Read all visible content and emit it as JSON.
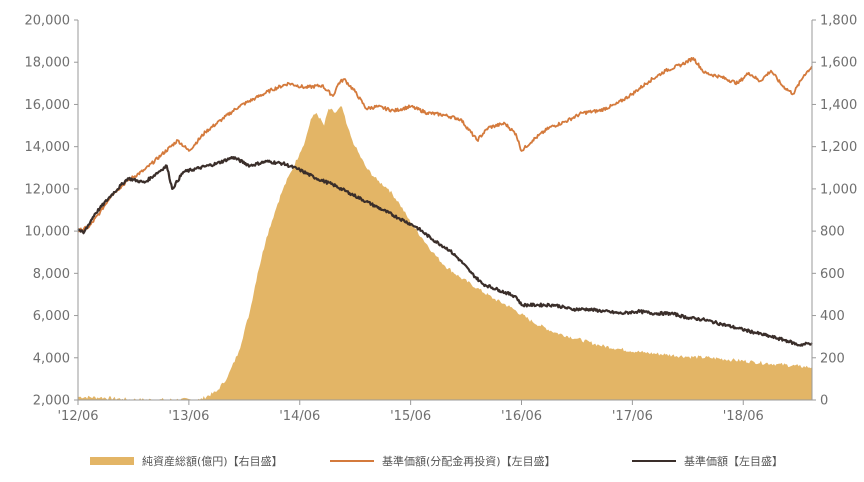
{
  "chart_data": {
    "type": "line",
    "left_axis": {
      "min": 2000,
      "max": 20000,
      "ticks": [
        "2,000",
        "4,000",
        "6,000",
        "8,000",
        "10,000",
        "12,000",
        "14,000",
        "16,000",
        "18,000",
        "20,000"
      ]
    },
    "right_axis": {
      "min": 0,
      "max": 1800,
      "ticks": [
        "0",
        "200",
        "400",
        "600",
        "800",
        "1,000",
        "1,200",
        "1,400",
        "1,600",
        "1,800"
      ]
    },
    "x_axis": {
      "ticks": [
        "'12/06",
        "'13/06",
        "'14/06",
        "'15/06",
        "'16/06",
        "'17/06",
        "'18/06"
      ],
      "tick_positions_years": [
        2012.5,
        2013.5,
        2014.5,
        2015.5,
        2016.5,
        2017.5,
        2018.5
      ],
      "range": [
        2012.5,
        2019.12
      ]
    },
    "series": [
      {
        "name": "純資産総額(億円)【右目盛】",
        "axis": "right",
        "kind": "area",
        "color": "#e3b566",
        "points": [
          [
            2012.5,
            15
          ],
          [
            2012.7,
            12
          ],
          [
            2012.9,
            5
          ],
          [
            2013.0,
            2
          ],
          [
            2013.3,
            1
          ],
          [
            2013.6,
            2
          ],
          [
            2013.75,
            40
          ],
          [
            2013.85,
            110
          ],
          [
            2013.95,
            230
          ],
          [
            2014.05,
            420
          ],
          [
            2014.12,
            600
          ],
          [
            2014.2,
            770
          ],
          [
            2014.3,
            930
          ],
          [
            2014.35,
            1000
          ],
          [
            2014.42,
            1080
          ],
          [
            2014.5,
            1170
          ],
          [
            2014.55,
            1230
          ],
          [
            2014.6,
            1330
          ],
          [
            2014.65,
            1360
          ],
          [
            2014.72,
            1300
          ],
          [
            2014.76,
            1380
          ],
          [
            2014.82,
            1360
          ],
          [
            2014.88,
            1390
          ],
          [
            2014.92,
            1310
          ],
          [
            2014.96,
            1250
          ],
          [
            2015.0,
            1200
          ],
          [
            2015.1,
            1100
          ],
          [
            2015.2,
            1040
          ],
          [
            2015.3,
            1000
          ],
          [
            2015.4,
            930
          ],
          [
            2015.5,
            840
          ],
          [
            2015.6,
            770
          ],
          [
            2015.7,
            700
          ],
          [
            2015.8,
            640
          ],
          [
            2015.95,
            580
          ],
          [
            2016.1,
            530
          ],
          [
            2016.25,
            480
          ],
          [
            2016.4,
            440
          ],
          [
            2016.6,
            370
          ],
          [
            2016.8,
            320
          ],
          [
            2017.0,
            290
          ],
          [
            2017.2,
            260
          ],
          [
            2017.4,
            240
          ],
          [
            2017.6,
            225
          ],
          [
            2017.8,
            215
          ],
          [
            2018.0,
            205
          ],
          [
            2018.2,
            200
          ],
          [
            2018.4,
            190
          ],
          [
            2018.6,
            180
          ],
          [
            2018.8,
            170
          ],
          [
            2019.0,
            160
          ],
          [
            2019.12,
            155
          ]
        ]
      },
      {
        "name": "基準価額(分配金再投資)【左目盛】",
        "axis": "left",
        "kind": "line",
        "color": "#d47a3c",
        "points": [
          [
            2012.5,
            10000
          ],
          [
            2012.6,
            10200
          ],
          [
            2012.7,
            10900
          ],
          [
            2012.8,
            11700
          ],
          [
            2012.95,
            12400
          ],
          [
            2013.1,
            12900
          ],
          [
            2013.25,
            13600
          ],
          [
            2013.4,
            14300
          ],
          [
            2013.5,
            13800
          ],
          [
            2013.65,
            14700
          ],
          [
            2013.8,
            15300
          ],
          [
            2013.95,
            15900
          ],
          [
            2014.1,
            16300
          ],
          [
            2014.25,
            16700
          ],
          [
            2014.4,
            17000
          ],
          [
            2014.55,
            16800
          ],
          [
            2014.7,
            16900
          ],
          [
            2014.8,
            16400
          ],
          [
            2014.85,
            17000
          ],
          [
            2014.9,
            17200
          ],
          [
            2015.0,
            16600
          ],
          [
            2015.1,
            15800
          ],
          [
            2015.2,
            15900
          ],
          [
            2015.35,
            15700
          ],
          [
            2015.5,
            15900
          ],
          [
            2015.65,
            15600
          ],
          [
            2015.8,
            15500
          ],
          [
            2015.95,
            15300
          ],
          [
            2016.1,
            14300
          ],
          [
            2016.2,
            14900
          ],
          [
            2016.35,
            15100
          ],
          [
            2016.45,
            14600
          ],
          [
            2016.5,
            13800
          ],
          [
            2016.6,
            14300
          ],
          [
            2016.75,
            14900
          ],
          [
            2016.9,
            15200
          ],
          [
            2017.05,
            15600
          ],
          [
            2017.2,
            15700
          ],
          [
            2017.35,
            16000
          ],
          [
            2017.5,
            16500
          ],
          [
            2017.65,
            17100
          ],
          [
            2017.8,
            17600
          ],
          [
            2017.95,
            17900
          ],
          [
            2018.05,
            18200
          ],
          [
            2018.15,
            17500
          ],
          [
            2018.3,
            17300
          ],
          [
            2018.45,
            17000
          ],
          [
            2018.55,
            17500
          ],
          [
            2018.65,
            17100
          ],
          [
            2018.75,
            17600
          ],
          [
            2018.85,
            16900
          ],
          [
            2018.95,
            16500
          ],
          [
            2019.05,
            17400
          ],
          [
            2019.12,
            17800
          ]
        ]
      },
      {
        "name": "基準価額【左目盛】",
        "axis": "left",
        "kind": "line",
        "color": "#3a2e2a",
        "points": [
          [
            2012.5,
            10100
          ],
          [
            2012.55,
            9900
          ],
          [
            2012.65,
            10800
          ],
          [
            2012.8,
            11700
          ],
          [
            2012.95,
            12500
          ],
          [
            2013.1,
            12300
          ],
          [
            2013.2,
            12700
          ],
          [
            2013.3,
            13100
          ],
          [
            2013.35,
            12000
          ],
          [
            2013.45,
            12800
          ],
          [
            2013.6,
            13000
          ],
          [
            2013.75,
            13200
          ],
          [
            2013.9,
            13500
          ],
          [
            2014.05,
            13100
          ],
          [
            2014.2,
            13300
          ],
          [
            2014.35,
            13200
          ],
          [
            2014.5,
            12900
          ],
          [
            2014.65,
            12500
          ],
          [
            2014.8,
            12200
          ],
          [
            2014.95,
            11800
          ],
          [
            2015.1,
            11400
          ],
          [
            2015.25,
            11000
          ],
          [
            2015.4,
            10600
          ],
          [
            2015.55,
            10200
          ],
          [
            2015.7,
            9600
          ],
          [
            2015.85,
            9100
          ],
          [
            2015.95,
            8600
          ],
          [
            2016.05,
            8000
          ],
          [
            2016.15,
            7500
          ],
          [
            2016.3,
            7200
          ],
          [
            2016.45,
            6900
          ],
          [
            2016.5,
            6500
          ],
          [
            2016.65,
            6500
          ],
          [
            2016.8,
            6500
          ],
          [
            2016.95,
            6300
          ],
          [
            2017.1,
            6300
          ],
          [
            2017.25,
            6200
          ],
          [
            2017.4,
            6100
          ],
          [
            2017.55,
            6200
          ],
          [
            2017.7,
            6100
          ],
          [
            2017.85,
            6100
          ],
          [
            2018.0,
            5900
          ],
          [
            2018.15,
            5800
          ],
          [
            2018.3,
            5600
          ],
          [
            2018.45,
            5400
          ],
          [
            2018.6,
            5200
          ],
          [
            2018.75,
            5000
          ],
          [
            2018.9,
            4800
          ],
          [
            2019.0,
            4600
          ],
          [
            2019.12,
            4700
          ]
        ]
      }
    ],
    "legend": [
      {
        "label": "純資産総額(億円)【右目盛】",
        "color": "#e3b566",
        "style": "bar"
      },
      {
        "label": "基準価額(分配金再投資)【左目盛】",
        "color": "#d47a3c",
        "style": "line"
      },
      {
        "label": "基準価額【左目盛】",
        "color": "#3a2e2a",
        "style": "line"
      }
    ]
  }
}
